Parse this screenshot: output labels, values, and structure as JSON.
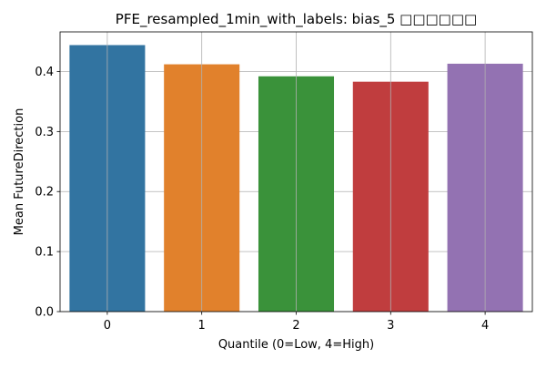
{
  "chart_data": {
    "type": "bar",
    "title": "PFE_resampled_1min_with_labels: bias_5 □□□□□□",
    "xlabel": "Quantile (0=Low, 4=High)",
    "ylabel": "Mean FutureDirection",
    "categories": [
      "0",
      "1",
      "2",
      "3",
      "4"
    ],
    "values": [
      0.444,
      0.412,
      0.392,
      0.383,
      0.413
    ],
    "colors": [
      "#3274a1",
      "#e1812c",
      "#3a923a",
      "#c03d3e",
      "#9372b2"
    ],
    "ylim": [
      0,
      0.466
    ],
    "yticks": [
      0.0,
      0.1,
      0.2,
      0.3,
      0.4
    ],
    "ytick_labels": [
      "0.0",
      "0.1",
      "0.2",
      "0.3",
      "0.4"
    ],
    "grid": true,
    "legend": "none"
  }
}
